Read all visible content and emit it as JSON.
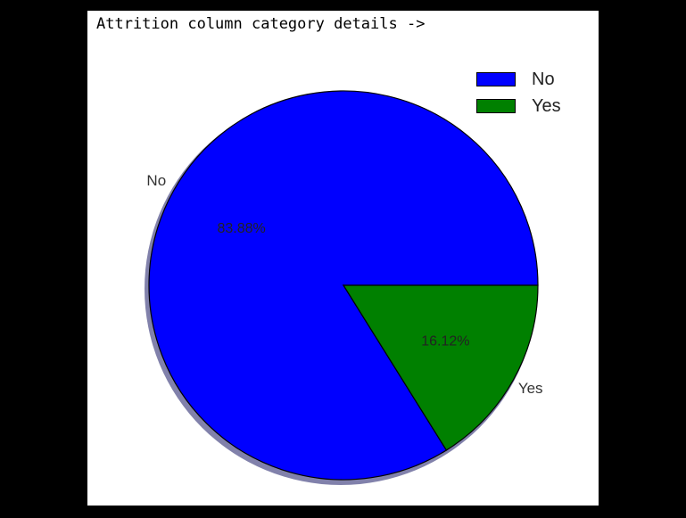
{
  "title": "Attrition column category details ->",
  "chart_data": {
    "type": "pie",
    "title": "Attrition column category details ->",
    "categories": [
      "No",
      "Yes"
    ],
    "values": [
      83.88,
      16.12
    ],
    "value_labels": [
      "83.88%",
      "16.12%"
    ],
    "colors": [
      "#0000ff",
      "#008000"
    ],
    "shadow": true,
    "legend": {
      "placement": "top-right",
      "entries": [
        "No",
        "Yes"
      ]
    }
  }
}
